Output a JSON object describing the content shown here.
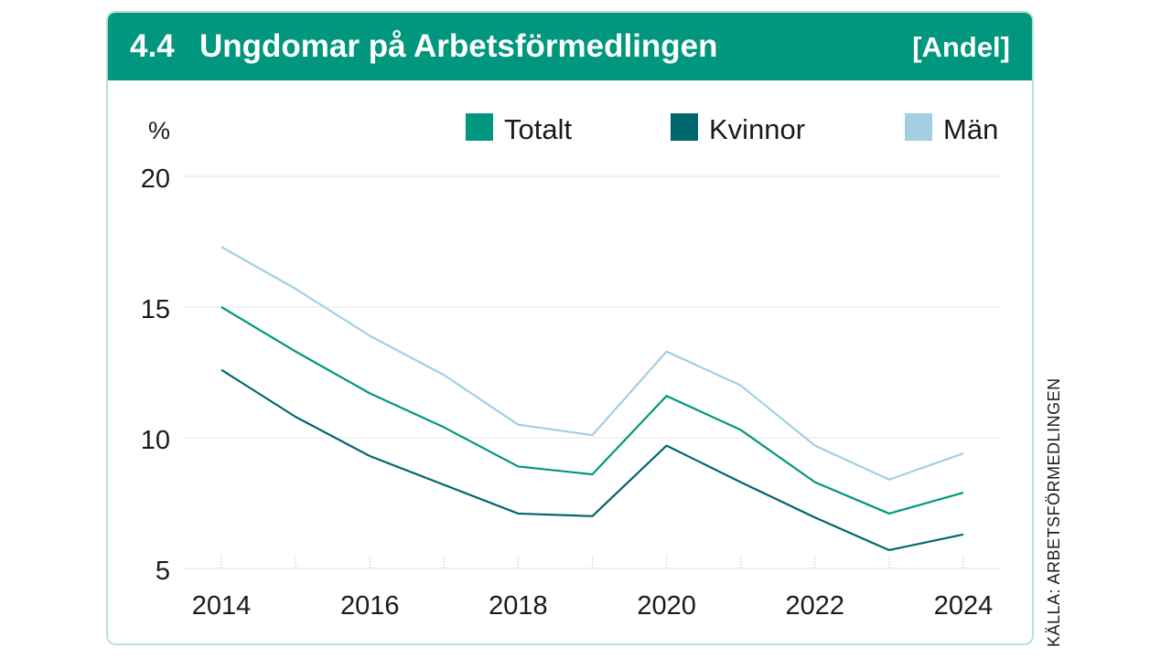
{
  "header": {
    "number": "4.4",
    "title": "Ungdomar på Arbetsförmedlingen",
    "tag": "[Andel]",
    "bg_color": "#00977e"
  },
  "source": "KÄLLA: ARBETSFÖRMEDLINGEN",
  "chart_data": {
    "type": "line",
    "ylabel": "%",
    "xlabel": "",
    "ylim": [
      5,
      20
    ],
    "yticks": [
      5,
      10,
      15,
      20
    ],
    "x": [
      2014,
      2015,
      2016,
      2017,
      2018,
      2019,
      2020,
      2021,
      2022,
      2023,
      2024
    ],
    "xticks": [
      2014,
      2016,
      2018,
      2020,
      2022,
      2024
    ],
    "grid": true,
    "legend_position": "top",
    "series": [
      {
        "name": "Totalt",
        "color": "#00977e",
        "values": [
          15.0,
          13.3,
          11.7,
          10.4,
          8.9,
          8.6,
          11.6,
          10.3,
          8.3,
          7.1,
          7.9
        ]
      },
      {
        "name": "Kvinnor",
        "color": "#00666e",
        "values": [
          12.6,
          10.8,
          9.3,
          8.2,
          7.1,
          7.0,
          9.7,
          8.3,
          6.95,
          5.7,
          6.3
        ]
      },
      {
        "name": "Män",
        "color": "#a3cfe3",
        "values": [
          17.3,
          15.7,
          13.9,
          12.4,
          10.5,
          10.1,
          13.3,
          12.0,
          9.7,
          8.4,
          9.4
        ]
      }
    ]
  }
}
